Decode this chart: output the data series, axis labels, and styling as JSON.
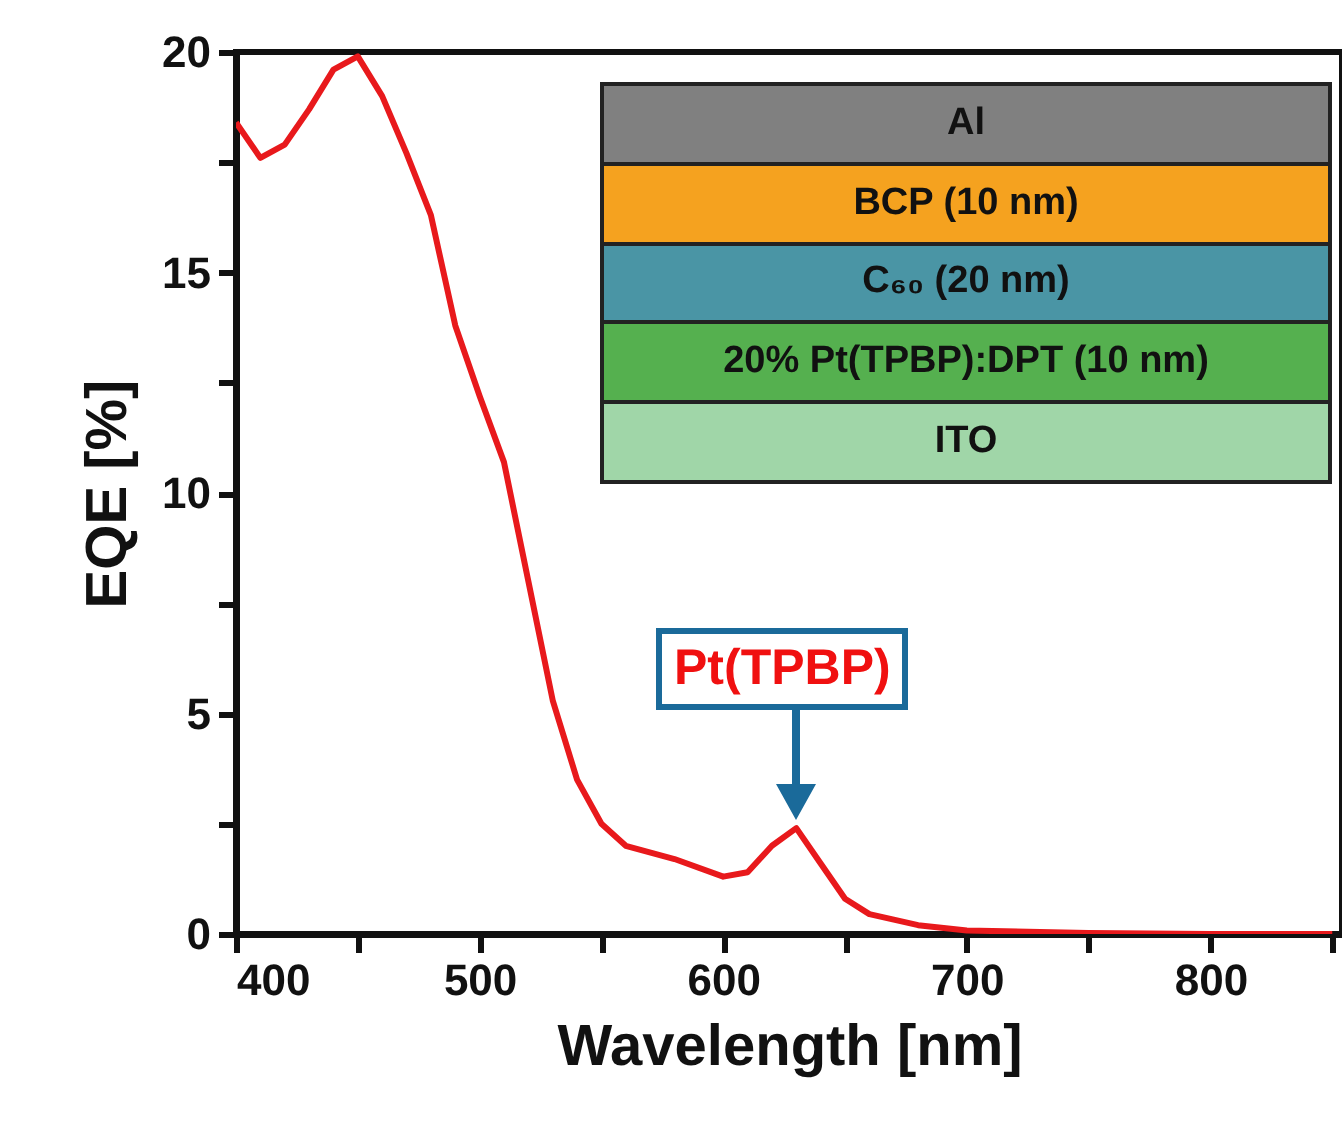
{
  "chart_data": {
    "type": "line",
    "xlabel": "Wavelength [nm]",
    "ylabel": "EQE [%]",
    "xlim": [
      400,
      854
    ],
    "xticks": [
      400,
      {
        "value": 450,
        "label": null
      },
      500,
      {
        "value": 550,
        "label": null
      },
      600,
      {
        "value": 650,
        "label": null
      },
      700,
      {
        "value": 750,
        "label": null
      },
      800,
      {
        "value": 850,
        "label": null
      }
    ],
    "ylim": [
      0,
      20
    ],
    "yticks": [
      0,
      {
        "value": 2.5,
        "label": null
      },
      5,
      {
        "value": 7.5,
        "label": null
      },
      10,
      {
        "value": 12.5,
        "label": null
      },
      15,
      {
        "value": 17.5,
        "label": null
      },
      20
    ],
    "grid": false,
    "legend": false,
    "line_style": "solid",
    "marker": "none",
    "x": [
      400,
      410,
      420,
      430,
      440,
      450,
      460,
      470,
      480,
      490,
      500,
      510,
      520,
      530,
      540,
      550,
      560,
      580,
      600,
      610,
      620,
      630,
      640,
      650,
      660,
      680,
      700,
      750,
      800,
      850
    ],
    "series": [
      {
        "color": "#e8191c",
        "values": [
          18.4,
          17.6,
          17.9,
          18.7,
          19.6,
          19.9,
          19.0,
          17.7,
          16.3,
          13.8,
          12.2,
          10.7,
          8.0,
          5.3,
          3.5,
          2.5,
          2.0,
          1.7,
          1.3,
          1.4,
          2.0,
          2.4,
          1.6,
          0.8,
          0.45,
          0.2,
          0.08,
          0.02,
          0,
          0
        ]
      }
    ],
    "annotations": [
      "Al",
      "BCP (10 nm)",
      "C₆₀ (20 nm)",
      "20% Pt(TPBP):DPT (10 nm)",
      "ITO",
      "Pt(TPBP)"
    ]
  }
}
